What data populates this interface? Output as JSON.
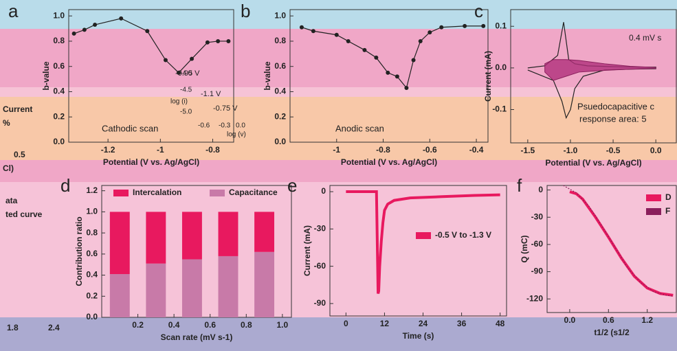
{
  "chart_data": [
    {
      "type": "line",
      "label": "a",
      "xlabel": "Potential (V vs. Ag/AgCl)",
      "ylabel": "b-value",
      "xlim": [
        -1.35,
        -0.72
      ],
      "ylim": [
        0,
        1.05
      ],
      "xticks": [
        -1.2,
        -1.0,
        -0.8
      ],
      "yticks": [
        {
          "value": 0,
          "label": "0.0"
        },
        0.2,
        0.4,
        0.6,
        0.8,
        {
          "value": 1,
          "label": "1.0"
        }
      ],
      "series": [
        {
          "color": "#222222",
          "markers": true,
          "x": [
            -1.33,
            -1.29,
            -1.25,
            -1.15,
            -1.05,
            -0.98,
            -0.93,
            -0.88,
            -0.82,
            -0.78,
            -0.74
          ],
          "values": [
            0.86,
            0.89,
            0.93,
            0.98,
            0.88,
            0.65,
            0.55,
            0.66,
            0.79,
            0.8,
            0.8
          ]
        }
      ],
      "annotations": [
        "Cathodic scan",
        "-0.95 V",
        "-1.1 V",
        "-0.75 V",
        "log (v)",
        "log (i)",
        "-4.0",
        "-4.5",
        "-5.0",
        "-0.6",
        "-0.3",
        "0.0"
      ]
    },
    {
      "type": "line",
      "label": "b",
      "xlabel": "Potential (V vs. Ag/AgCl)",
      "ylabel": "b-value",
      "xlim": [
        -1.2,
        -0.35
      ],
      "ylim": [
        0,
        1.05
      ],
      "xticks": [
        -1.0,
        -0.8,
        -0.6,
        -0.4
      ],
      "yticks": [
        {
          "value": 0,
          "label": "0.0"
        },
        0.2,
        0.4,
        0.6,
        0.8,
        {
          "value": 1,
          "label": "1.0"
        }
      ],
      "series": [
        {
          "color": "#222222",
          "markers": true,
          "x": [
            -1.15,
            -1.1,
            -1.0,
            -0.95,
            -0.88,
            -0.83,
            -0.78,
            -0.74,
            -0.7,
            -0.67,
            -0.64,
            -0.6,
            -0.55,
            -0.45,
            -0.37
          ],
          "values": [
            0.91,
            0.88,
            0.85,
            0.8,
            0.73,
            0.67,
            0.55,
            0.52,
            0.43,
            0.65,
            0.8,
            0.87,
            0.91,
            0.92,
            0.92
          ]
        }
      ],
      "annotations": [
        "Anodic scan"
      ]
    },
    {
      "type": "line",
      "label": "c",
      "xlabel": "Potential (V vs. Ag/AgCl)",
      "ylabel": "Current (mA)",
      "xlim": [
        -1.7,
        0.24
      ],
      "ylim": [
        -0.18,
        0.14
      ],
      "xticks": [
        -1.5,
        {
          "value": -1,
          "label": "-1.0"
        },
        -0.5,
        {
          "value": 0,
          "label": "0.0"
        }
      ],
      "yticks": [
        -0.1,
        {
          "value": 0,
          "label": "0.0"
        },
        0.1
      ],
      "series": [
        {
          "color": "#222222",
          "x": [
            -1.5,
            -1.3,
            -1.15,
            -1.08,
            -1.02,
            -0.95,
            -0.8,
            -0.5,
            -0.2,
            0.0,
            0.0,
            -0.3,
            -0.6,
            -0.85,
            -0.95,
            -1.0,
            -1.05,
            -1.1,
            -1.2,
            -1.5
          ],
          "values": [
            0.0,
            0.005,
            0.03,
            0.11,
            0.02,
            0.01,
            0.005,
            0.003,
            0.002,
            0.002,
            -0.002,
            -0.003,
            -0.005,
            -0.02,
            -0.05,
            -0.1,
            -0.12,
            -0.08,
            -0.03,
            -0.005
          ]
        },
        {
          "color": "#8a1f5c",
          "fill": "#b0307a",
          "x": [
            -1.3,
            -1.2,
            -1.05,
            -0.9,
            -0.6,
            -0.3,
            0.0,
            0.0,
            -0.3,
            -0.6,
            -0.9,
            -1.05,
            -1.2,
            -1.3
          ],
          "values": [
            0.01,
            0.02,
            0.02,
            0.018,
            0.01,
            0.004,
            0.001,
            -0.001,
            -0.003,
            -0.006,
            -0.01,
            -0.02,
            -0.03,
            -0.01
          ]
        }
      ],
      "annotations": [
        "0.4 mV s",
        "Psuedocapacitive c",
        "response area: 5"
      ]
    },
    {
      "type": "bar",
      "label": "d",
      "xlabel": "Scan rate (mV s-1)",
      "ylabel": "Contribution ratio",
      "xlim": [
        0,
        1.05
      ],
      "ylim": [
        0,
        1.25
      ],
      "xticks": [
        0.2,
        0.4,
        0.6,
        0.8,
        {
          "value": 1,
          "label": "1.0"
        }
      ],
      "yticks": [
        {
          "value": 0,
          "label": "0.0"
        },
        0.2,
        0.4,
        0.6,
        0.8,
        {
          "value": 1,
          "label": "1.0"
        },
        1.2
      ],
      "x": [
        0.1,
        0.3,
        0.5,
        0.7,
        0.9
      ],
      "series": [
        {
          "name": "Intercalation",
          "color": "#e8195f",
          "values": [
            0.59,
            0.49,
            0.45,
            0.42,
            0.38
          ]
        },
        {
          "name": "Capacitance",
          "color": "#c87aa8",
          "values": [
            0.41,
            0.51,
            0.55,
            0.58,
            0.62
          ]
        }
      ]
    },
    {
      "type": "line",
      "label": "e",
      "xlabel": "Time (s)",
      "ylabel": "Current (mA)",
      "xlim": [
        -5,
        50
      ],
      "ylim": [
        -100,
        5
      ],
      "xticks": [
        0,
        12,
        24,
        36,
        48
      ],
      "yticks": [
        0,
        -30,
        -60,
        -90
      ],
      "series": [
        {
          "name": "-0.5 V to -1.3 V",
          "color": "#e8195f",
          "width": 4,
          "x": [
            0,
            2,
            4,
            6,
            8,
            9.5,
            10,
            10.2,
            10.5,
            11,
            11.5,
            12,
            13,
            15,
            20,
            30,
            40,
            48
          ],
          "values": [
            0,
            0,
            0,
            0,
            0,
            0,
            -82,
            -80,
            -60,
            -40,
            -25,
            -15,
            -10,
            -7,
            -5,
            -4,
            -3,
            -2.5
          ]
        }
      ]
    },
    {
      "type": "line",
      "label": "f",
      "xlabel": "t1/2 (s1/2",
      "ylabel": "Q (mC)",
      "xlim": [
        -0.35,
        1.65
      ],
      "ylim": [
        -135,
        5
      ],
      "xticks": [
        {
          "value": 0,
          "label": "0.0"
        },
        0.6,
        1.2
      ],
      "yticks": [
        0,
        -30,
        -60,
        -90,
        -120
      ],
      "series": [
        {
          "name": "D",
          "color": "#e8195f",
          "width": 4,
          "x": [
            0,
            0.1,
            0.2,
            0.4,
            0.6,
            0.8,
            1.0,
            1.2,
            1.4,
            1.6
          ],
          "values": [
            -2,
            -4,
            -10,
            -30,
            -52,
            -75,
            -95,
            -108,
            -114,
            -116
          ]
        },
        {
          "name": "F",
          "color": "#8a1f5c",
          "dash": true,
          "x": [
            -0.1,
            0.1,
            0.3,
            0.5,
            0.7,
            0.9,
            1.1,
            1.3,
            1.5,
            1.6
          ],
          "values": [
            5,
            -3,
            -18,
            -40,
            -63,
            -86,
            -102,
            -112,
            -116,
            -117
          ]
        }
      ]
    }
  ],
  "fragments": [
    "ata",
    "ted curve",
    "1.8",
    "2.4",
    "Current",
    "%",
    "0.5",
    "Cl)"
  ]
}
